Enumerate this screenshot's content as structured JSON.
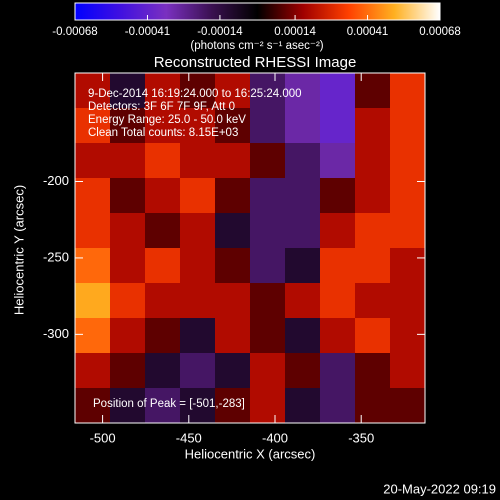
{
  "chart_data": {
    "type": "heatmap",
    "title": "Reconstructed RHESSI Image",
    "xlabel": "Heliocentric X (arcsec)",
    "ylabel": "Heliocentric Y (arcsec)",
    "colorbar_label": "(photons cm⁻² s⁻¹ asec⁻²)",
    "annotations": [
      "9-Dec-2014 16:19:24.000 to 16:25:24.000",
      "Detectors: 3F 6F 7F 9F, Att 0",
      "Energy Range: 25.0 - 50.0 keV",
      "Clean     Total counts: 8.15E+03"
    ],
    "peak_label": "Position of Peak = [-501,-283]",
    "footer": "20-May-2022 09:19",
    "xlim": [
      -516,
      -313
    ],
    "xticks": [
      -500,
      -450,
      -400,
      -350
    ],
    "ylim": [
      -358,
      -129
    ],
    "yticks": [
      -200,
      -250,
      -300
    ],
    "zlim": [
      -0.00068,
      0.00068
    ],
    "zticks": [
      -0.00068,
      -0.00041,
      -0.00014,
      0.00014,
      0.00041,
      0.00068
    ],
    "colormap": [
      "#0000ff",
      "#4010e0",
      "#7a30c0",
      "#3a1050",
      "#000000",
      "#a00000",
      "#ff4000",
      "#ffb020",
      "#ffffff"
    ],
    "z": [
      [
        0.0002,
        -0.0001,
        0.0002,
        0.0001,
        0.0002,
        -0.0002,
        -0.0003,
        -0.0004,
        0.0001,
        0.0003
      ],
      [
        0.0003,
        0.0001,
        0.0002,
        0.0002,
        0.0001,
        -0.0002,
        -0.0003,
        -0.0004,
        0.0002,
        0.0003
      ],
      [
        0.0002,
        0.0002,
        0.0003,
        0.0002,
        0.0002,
        0.0001,
        -0.0002,
        -0.0003,
        0.0002,
        0.0003
      ],
      [
        0.0003,
        0.0001,
        0.0002,
        0.0003,
        0.0001,
        -0.0002,
        -0.0002,
        0.0001,
        0.0002,
        0.0003
      ],
      [
        0.0003,
        0.0002,
        0.0001,
        0.0002,
        -0.0001,
        -0.0002,
        -0.0002,
        0.0002,
        0.0003,
        0.0003
      ],
      [
        0.0004,
        0.0002,
        0.0003,
        0.0002,
        0.0001,
        -0.0002,
        -0.0001,
        0.0003,
        0.0003,
        0.0002
      ],
      [
        0.0005,
        0.0003,
        0.0002,
        0.0002,
        0.0002,
        0.0001,
        0.0002,
        0.0003,
        0.0002,
        0.0002
      ],
      [
        0.0004,
        0.0002,
        0.0001,
        -0.0001,
        0.0002,
        0.0001,
        -0.0001,
        0.0002,
        0.0003,
        0.0002
      ],
      [
        0.0002,
        0.0001,
        -0.0001,
        -0.0002,
        -0.0001,
        0.0002,
        0.0001,
        -0.0002,
        0.0001,
        0.0002
      ],
      [
        0.0001,
        -0.0001,
        -0.0002,
        -0.0001,
        0.0001,
        0.0002,
        -0.0001,
        -0.0002,
        0.0001,
        0.0001
      ]
    ]
  }
}
